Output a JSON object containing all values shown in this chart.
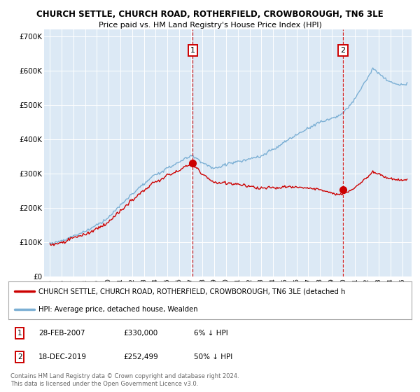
{
  "title1": "CHURCH SETTLE, CHURCH ROAD, ROTHERFIELD, CROWBOROUGH, TN6 3LE",
  "title2": "Price paid vs. HM Land Registry's House Price Index (HPI)",
  "background_color": "#dce9f5",
  "plot_bg_color": "#dce9f5",
  "hpi_color": "#7bafd4",
  "property_color": "#cc0000",
  "marker1_x": 2007.16,
  "marker1_y": 330000,
  "marker2_x": 2019.96,
  "marker2_y": 252499,
  "legend_property": "CHURCH SETTLE, CHURCH ROAD, ROTHERFIELD, CROWBOROUGH, TN6 3LE (detached h",
  "legend_hpi": "HPI: Average price, detached house, Wealden",
  "footer1": "Contains HM Land Registry data © Crown copyright and database right 2024.",
  "footer2": "This data is licensed under the Open Government Licence v3.0.",
  "ylim": [
    0,
    720000
  ],
  "xlim": [
    1994.5,
    2025.8
  ]
}
